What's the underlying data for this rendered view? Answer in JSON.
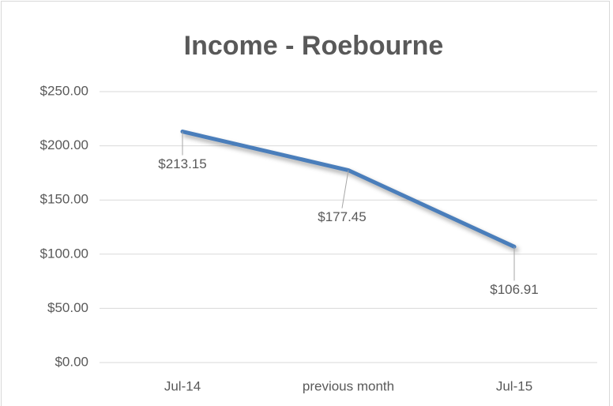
{
  "chart_data": {
    "type": "line",
    "title": "Income - Roebourne",
    "categories": [
      "Jul-14",
      "previous month",
      "Jul-15"
    ],
    "values": [
      213.15,
      177.45,
      106.91
    ],
    "value_labels": [
      "$213.15",
      "$177.45",
      "$106.91"
    ],
    "color": "#4a7ebb",
    "ylim": [
      0,
      250
    ],
    "yticks": [
      {
        "value": 0,
        "label": "$0.00"
      },
      {
        "value": 50,
        "label": "$50.00"
      },
      {
        "value": 100,
        "label": "$100.00"
      },
      {
        "value": 150,
        "label": "$150.00"
      },
      {
        "value": 200,
        "label": "$200.00"
      },
      {
        "value": 250,
        "label": "$250.00"
      }
    ],
    "grid": true
  }
}
